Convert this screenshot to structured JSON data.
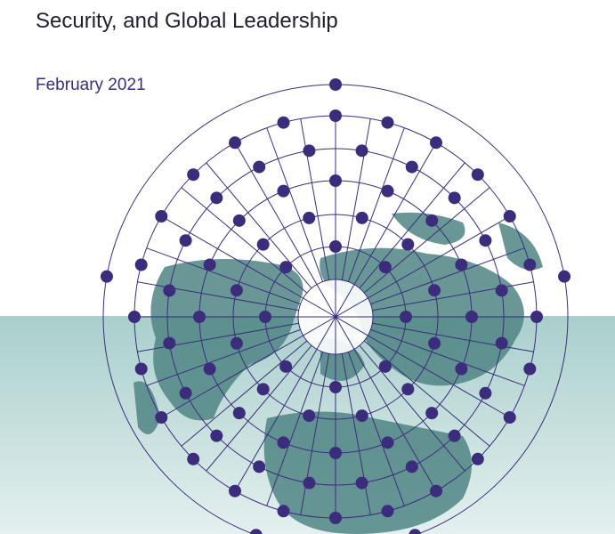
{
  "cover": {
    "title_line": "Security, and Global Leadership",
    "date": "February 2021"
  }
}
